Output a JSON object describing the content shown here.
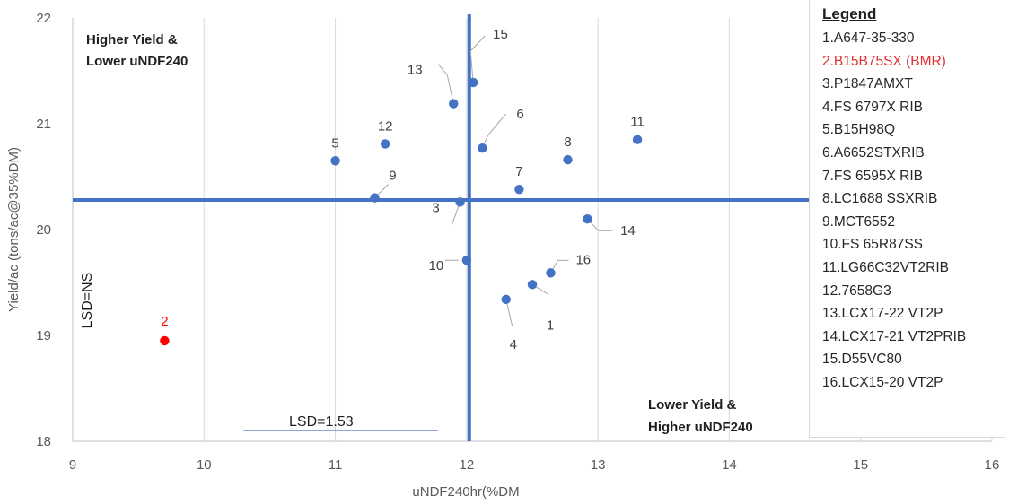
{
  "chart_data": {
    "type": "scatter",
    "title": "",
    "xlabel": "uNDF240hr(%DM",
    "ylabel": "Yield/ac (tons/ac@35%DM)",
    "xlim": [
      9,
      16
    ],
    "ylim": [
      18,
      22
    ],
    "x_ticks": [
      "9",
      "10",
      "11",
      "12",
      "13",
      "14",
      "15",
      "16"
    ],
    "y_ticks": [
      "18",
      "19",
      "20",
      "21",
      "22"
    ],
    "grid": "vertical",
    "points": [
      {
        "label": "1",
        "x": 12.5,
        "y": 19.48
      },
      {
        "label": "2",
        "x": 9.7,
        "y": 18.95,
        "color": "#ff0000"
      },
      {
        "label": "3",
        "x": 11.95,
        "y": 20.26
      },
      {
        "label": "4",
        "x": 12.3,
        "y": 19.34
      },
      {
        "label": "5",
        "x": 11.0,
        "y": 20.65
      },
      {
        "label": "6",
        "x": 12.12,
        "y": 20.77
      },
      {
        "label": "7",
        "x": 12.4,
        "y": 20.38
      },
      {
        "label": "8",
        "x": 12.77,
        "y": 20.66
      },
      {
        "label": "9",
        "x": 11.3,
        "y": 20.3
      },
      {
        "label": "10",
        "x": 12.0,
        "y": 19.71
      },
      {
        "label": "11",
        "x": 13.3,
        "y": 20.85
      },
      {
        "label": "12",
        "x": 11.38,
        "y": 20.81
      },
      {
        "label": "13",
        "x": 11.9,
        "y": 21.19
      },
      {
        "label": "14",
        "x": 12.92,
        "y": 20.1
      },
      {
        "label": "15",
        "x": 12.05,
        "y": 21.39
      },
      {
        "label": "16",
        "x": 12.64,
        "y": 19.59
      }
    ],
    "mean_x": 12.02,
    "mean_y": 20.28,
    "annotations": {
      "top_left": [
        "Higher Yield &",
        "Lower uNDF240"
      ],
      "bottom_right": [
        "Lower Yield &",
        "Higher uNDF240"
      ],
      "lsd_x": "LSD=1.53",
      "lsd_x_range": [
        10.3,
        11.78
      ],
      "lsd_y": "LSD=NS"
    },
    "legend": {
      "title": "Legend",
      "position": "right",
      "items": [
        "1.A647-35-330",
        "2.B15B75SX (BMR)",
        "3.P1847AMXT",
        "4.FS 6797X RIB",
        "5.B15H98Q",
        "6.A6652STXRIB",
        "7.FS 6595X RIB",
        "8.LC1688 SSXRIB",
        "9.MCT6552",
        "10.FS 65R87SS",
        "11.LG66C32VT2RIB",
        "12.7658G3",
        "13.LCX17-22 VT2P",
        "14.LCX17-21 VT2PRIB",
        "15.D55VC80",
        "16.LCX15-20 VT2P"
      ],
      "highlight_index": 1
    },
    "colors": {
      "point": "#4472c4",
      "highlight": "#ff0000",
      "mean_line": "#4472c4"
    }
  }
}
